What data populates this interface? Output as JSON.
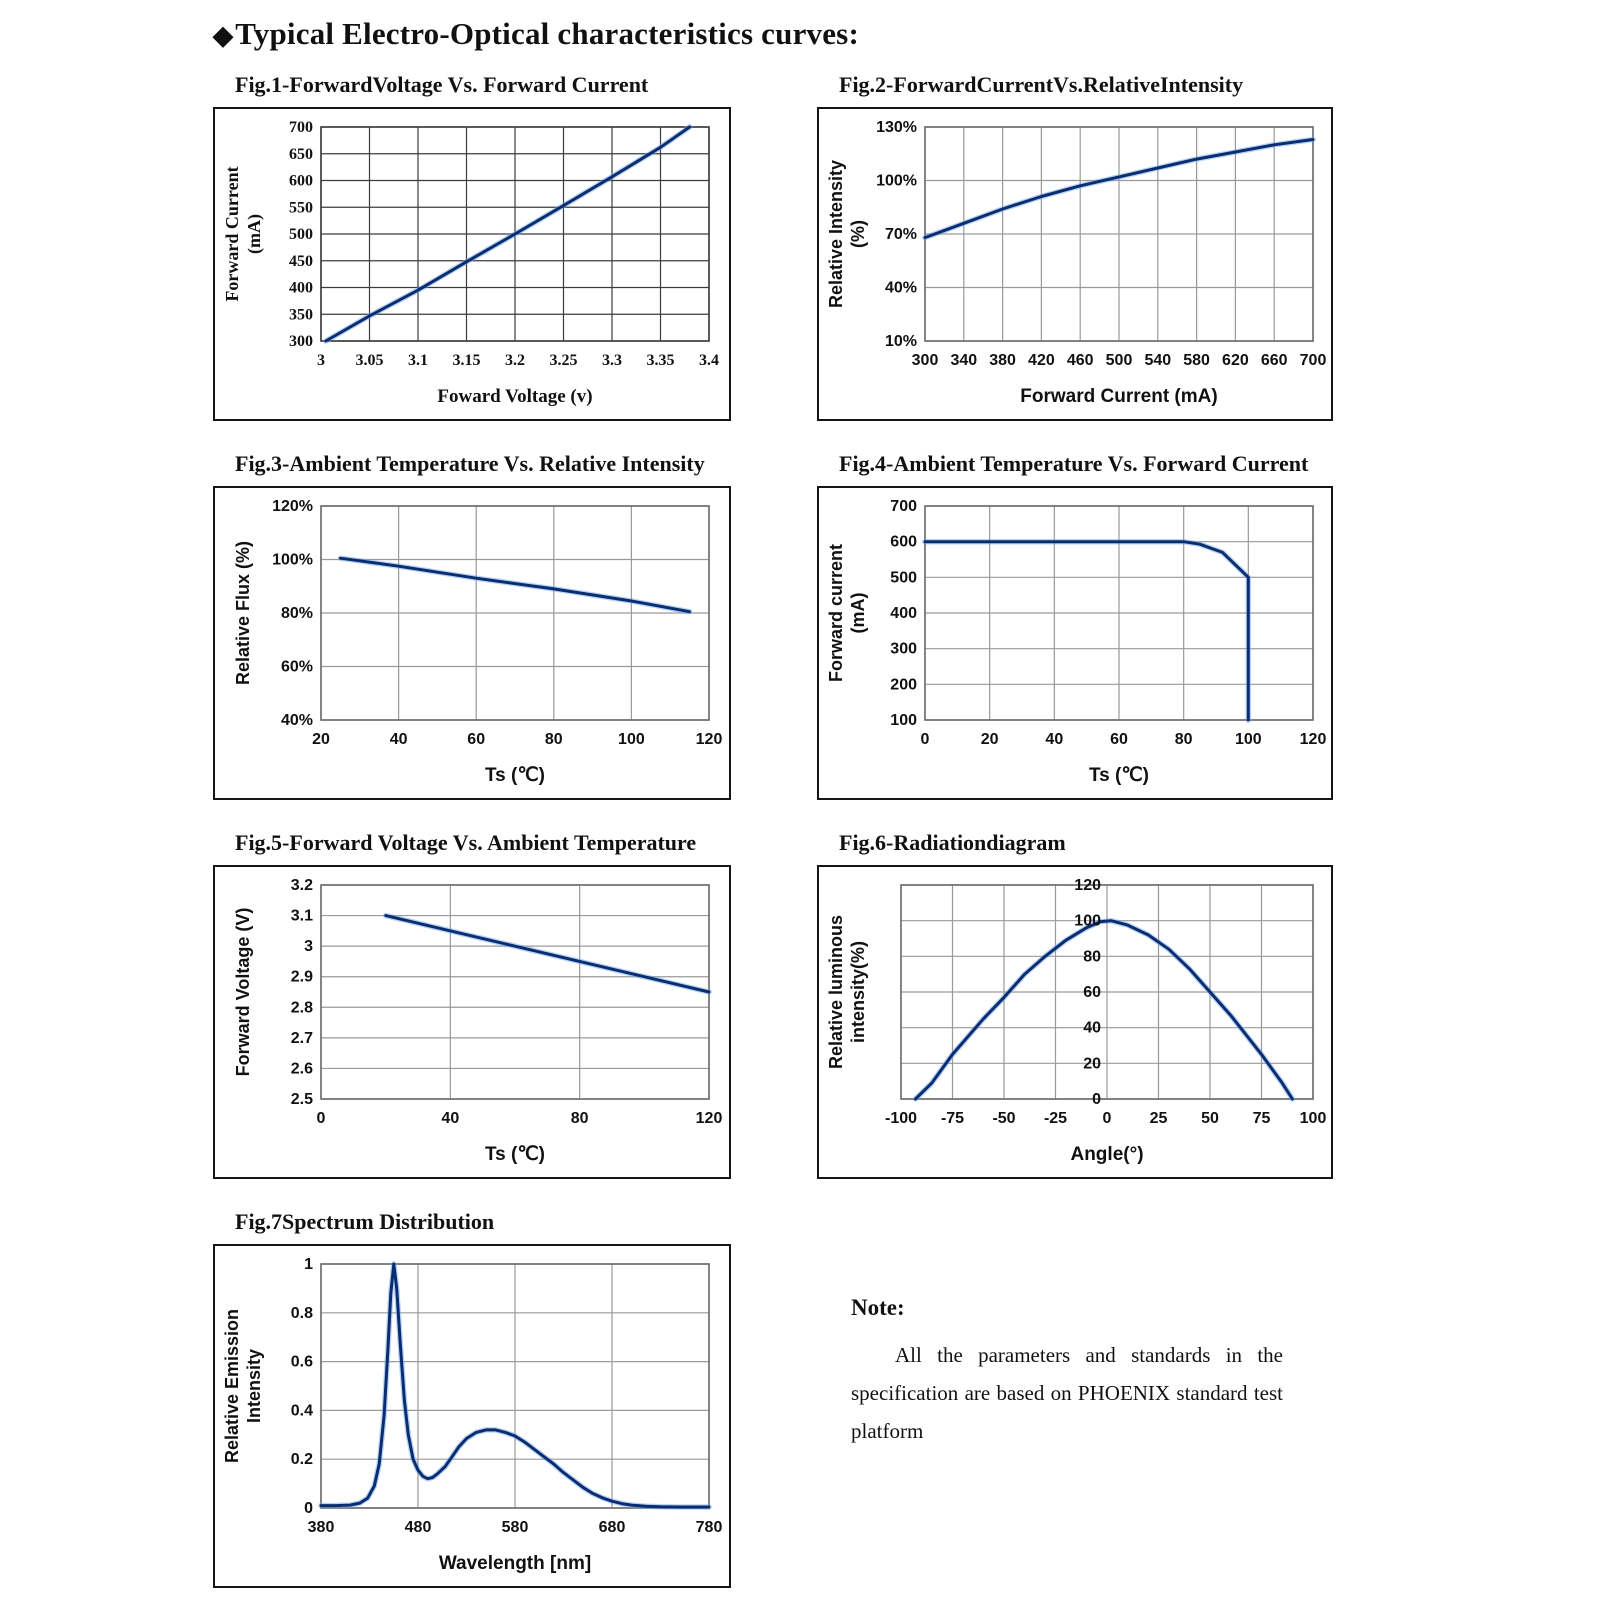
{
  "header": {
    "bullet": "◆",
    "title": "Typical Electro-Optical characteristics curves:"
  },
  "colors": {
    "curve": "#0a2d72",
    "curve_glow": "#6ea3e8",
    "grid": "#9a9a9a",
    "grid_dark": "#3c3c3c",
    "plot_border": "#6a6a6a",
    "text": "#111111"
  },
  "note": {
    "heading": "Note:",
    "body": "All the parameters and standards in the specification are based on PHOENIX standard test platform"
  },
  "chart_data": [
    {
      "id": "fig1",
      "caption": "Fig.1-ForwardVoltage Vs. Forward Current",
      "type": "line",
      "xlabel": "Foward Voltage (v)",
      "ylabel_lines": [
        "Forward Current",
        "(mA)"
      ],
      "xlim": [
        3,
        3.4
      ],
      "ylim": [
        300,
        700
      ],
      "xticks": [
        3,
        3.05,
        3.1,
        3.15,
        3.2,
        3.25,
        3.3,
        3.35,
        3.4
      ],
      "xtick_labels": [
        "3",
        "3.05",
        "3.1",
        "3.15",
        "3.2",
        "3.25",
        "3.3",
        "3.35",
        "3.4"
      ],
      "yticks": [
        300,
        350,
        400,
        450,
        500,
        550,
        600,
        650,
        700
      ],
      "ytick_labels": [
        "300",
        "350",
        "400",
        "450",
        "500",
        "550",
        "600",
        "650",
        "700"
      ],
      "dark_grid": true,
      "points": [
        [
          3.005,
          300
        ],
        [
          3.05,
          347
        ],
        [
          3.1,
          395
        ],
        [
          3.15,
          448
        ],
        [
          3.2,
          500
        ],
        [
          3.25,
          553
        ],
        [
          3.3,
          607
        ],
        [
          3.35,
          662
        ],
        [
          3.38,
          700
        ]
      ]
    },
    {
      "id": "fig2",
      "caption": "Fig.2-ForwardCurrentVs.RelativeIntensity",
      "type": "line",
      "xlabel": "Forward Current (mA)",
      "ylabel_lines": [
        "Relative Intensity",
        "(%)"
      ],
      "xlim": [
        300,
        700
      ],
      "ylim": [
        10,
        130
      ],
      "xticks": [
        300,
        340,
        380,
        420,
        460,
        500,
        540,
        580,
        620,
        660,
        700
      ],
      "xtick_labels": [
        "300",
        "340",
        "380",
        "420",
        "460",
        "500",
        "540",
        "580",
        "620",
        "660",
        "700"
      ],
      "yticks": [
        10,
        40,
        70,
        100,
        130
      ],
      "ytick_labels": [
        "10%",
        "40%",
        "70%",
        "100%",
        "130%"
      ],
      "points": [
        [
          300,
          68
        ],
        [
          340,
          76
        ],
        [
          380,
          84
        ],
        [
          420,
          91
        ],
        [
          460,
          97
        ],
        [
          500,
          102
        ],
        [
          540,
          107
        ],
        [
          580,
          112
        ],
        [
          620,
          116
        ],
        [
          660,
          120
        ],
        [
          700,
          123
        ]
      ]
    },
    {
      "id": "fig3",
      "caption": "Fig.3-Ambient Temperature Vs. Relative Intensity",
      "type": "line",
      "xlabel": "Ts (℃)",
      "ylabel_lines": [
        "Relative Flux (%)"
      ],
      "xlim": [
        20,
        120
      ],
      "ylim": [
        40,
        120
      ],
      "xticks": [
        20,
        40,
        60,
        80,
        100,
        120
      ],
      "xtick_labels": [
        "20",
        "40",
        "60",
        "80",
        "100",
        "120"
      ],
      "yticks": [
        40,
        60,
        80,
        100,
        120
      ],
      "ytick_labels": [
        "40%",
        "60%",
        "80%",
        "100%",
        "120%"
      ],
      "points": [
        [
          25,
          100.5
        ],
        [
          40,
          97.5
        ],
        [
          60,
          93
        ],
        [
          80,
          89
        ],
        [
          100,
          84.5
        ],
        [
          115,
          80.5
        ]
      ]
    },
    {
      "id": "fig4",
      "caption": "Fig.4-Ambient Temperature Vs. Forward Current",
      "type": "line",
      "xlabel": "Ts (℃)",
      "ylabel_lines": [
        "Forward current",
        "(mA)"
      ],
      "xlim": [
        0,
        120
      ],
      "ylim": [
        100,
        700
      ],
      "xticks": [
        0,
        20,
        40,
        60,
        80,
        100,
        120
      ],
      "xtick_labels": [
        "0",
        "20",
        "40",
        "60",
        "80",
        "100",
        "120"
      ],
      "yticks": [
        100,
        200,
        300,
        400,
        500,
        600,
        700
      ],
      "ytick_labels": [
        "100",
        "200",
        "300",
        "400",
        "500",
        "600",
        "700"
      ],
      "points": [
        [
          0,
          600
        ],
        [
          80,
          600
        ],
        [
          85,
          593
        ],
        [
          92,
          570
        ],
        [
          100,
          500
        ],
        [
          100,
          100
        ]
      ]
    },
    {
      "id": "fig5",
      "caption": "Fig.5-Forward Voltage Vs. Ambient Temperature",
      "type": "line",
      "xlabel": "Ts (℃)",
      "ylabel_lines": [
        "Forward Voltage (V)"
      ],
      "xlim": [
        0,
        120
      ],
      "ylim": [
        2.5,
        3.2
      ],
      "xticks": [
        0,
        40,
        80,
        120
      ],
      "xtick_labels": [
        "0",
        "40",
        "80",
        "120"
      ],
      "yticks": [
        2.5,
        2.6,
        2.7,
        2.8,
        2.9,
        3,
        3.1,
        3.2
      ],
      "ytick_labels": [
        "2.5",
        "2.6",
        "2.7",
        "2.8",
        "2.9",
        "3",
        "3.1",
        "3.2"
      ],
      "points": [
        [
          20,
          3.1
        ],
        [
          70,
          2.975
        ],
        [
          120,
          2.85
        ]
      ]
    },
    {
      "id": "fig6",
      "caption": "Fig.6-Radiationdiagram",
      "type": "line",
      "xlabel": "Angle(°)",
      "ylabel_lines": [
        "Relative luminous",
        "intensity(%)"
      ],
      "xlim": [
        -100,
        100
      ],
      "ylim": [
        0,
        120
      ],
      "xticks": [
        -100,
        -75,
        -50,
        -25,
        0,
        25,
        50,
        75,
        100
      ],
      "xtick_labels": [
        "-100",
        "-75",
        "-50",
        "-25",
        "0",
        "25",
        "50",
        "75",
        "100"
      ],
      "yticks": [
        0,
        20,
        40,
        60,
        80,
        100,
        120
      ],
      "ytick_labels": [
        "0",
        "20",
        "40",
        "60",
        "80",
        "100",
        "120"
      ],
      "y_labels_at_x": 0,
      "points": [
        [
          -93,
          0
        ],
        [
          -85,
          9
        ],
        [
          -75,
          25
        ],
        [
          -60,
          45
        ],
        [
          -50,
          57
        ],
        [
          -40,
          70
        ],
        [
          -30,
          80
        ],
        [
          -20,
          89
        ],
        [
          -10,
          96
        ],
        [
          -3,
          99.5
        ],
        [
          2,
          100
        ],
        [
          10,
          97.5
        ],
        [
          20,
          92
        ],
        [
          30,
          84
        ],
        [
          40,
          73
        ],
        [
          50,
          60
        ],
        [
          60,
          47
        ],
        [
          75,
          25
        ],
        [
          85,
          9
        ],
        [
          90,
          0
        ]
      ]
    },
    {
      "id": "fig7",
      "caption": "Fig.7Spectrum Distribution",
      "type": "line",
      "xlabel": "Wavelength [nm]",
      "ylabel_lines": [
        "Relative Emission",
        "Intensity"
      ],
      "xlim": [
        380,
        780
      ],
      "ylim": [
        0,
        1
      ],
      "xticks": [
        380,
        480,
        580,
        680,
        780
      ],
      "xtick_labels": [
        "380",
        "480",
        "580",
        "680",
        "780"
      ],
      "yticks": [
        0,
        0.2,
        0.4,
        0.6,
        0.8,
        1
      ],
      "ytick_labels": [
        "0",
        "0.2",
        "0.4",
        "0.6",
        "0.8",
        "1"
      ],
      "points": [
        [
          380,
          0.01
        ],
        [
          395,
          0.01
        ],
        [
          410,
          0.012
        ],
        [
          420,
          0.02
        ],
        [
          428,
          0.04
        ],
        [
          435,
          0.09
        ],
        [
          440,
          0.18
        ],
        [
          445,
          0.38
        ],
        [
          449,
          0.65
        ],
        [
          452,
          0.88
        ],
        [
          455,
          1.0
        ],
        [
          458,
          0.9
        ],
        [
          462,
          0.66
        ],
        [
          466,
          0.44
        ],
        [
          470,
          0.3
        ],
        [
          475,
          0.2
        ],
        [
          480,
          0.155
        ],
        [
          485,
          0.13
        ],
        [
          490,
          0.12
        ],
        [
          495,
          0.125
        ],
        [
          500,
          0.14
        ],
        [
          508,
          0.17
        ],
        [
          515,
          0.21
        ],
        [
          522,
          0.25
        ],
        [
          530,
          0.285
        ],
        [
          540,
          0.31
        ],
        [
          550,
          0.32
        ],
        [
          560,
          0.32
        ],
        [
          570,
          0.31
        ],
        [
          580,
          0.295
        ],
        [
          590,
          0.27
        ],
        [
          600,
          0.24
        ],
        [
          610,
          0.21
        ],
        [
          620,
          0.18
        ],
        [
          630,
          0.145
        ],
        [
          640,
          0.115
        ],
        [
          650,
          0.085
        ],
        [
          660,
          0.06
        ],
        [
          670,
          0.042
        ],
        [
          680,
          0.028
        ],
        [
          690,
          0.018
        ],
        [
          700,
          0.012
        ],
        [
          715,
          0.007
        ],
        [
          730,
          0.005
        ],
        [
          750,
          0.004
        ],
        [
          780,
          0.004
        ]
      ]
    }
  ]
}
